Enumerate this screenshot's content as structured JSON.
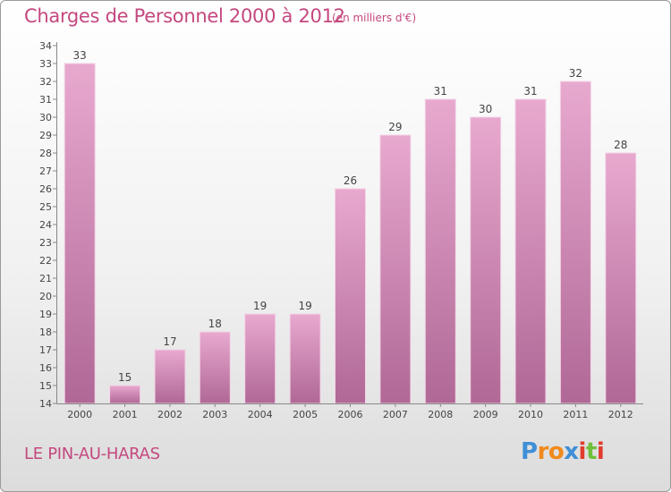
{
  "header": {
    "title": "Charges de Personnel 2000 à 2012",
    "subtitle": "(en milliers d'€)"
  },
  "footer": {
    "location": "LE PIN-AU-HARAS",
    "brand": "Proxiti",
    "brand_letters": [
      {
        "ch": "P",
        "color": "#3f8fd6"
      },
      {
        "ch": "r",
        "color": "#f08a1c"
      },
      {
        "ch": "o",
        "color": "#f08a1c"
      },
      {
        "ch": "x",
        "color": "#3f8fd6"
      },
      {
        "ch": "i",
        "color": "#e23c2e"
      },
      {
        "ch": "t",
        "color": "#6fbf3b"
      },
      {
        "ch": "i",
        "color": "#e23c2e"
      }
    ]
  },
  "colors": {
    "accent": "#c4487f",
    "bar_light": "#e8a9cf",
    "bar_dark": "#b06896"
  },
  "chart_data": {
    "type": "bar",
    "title": "Charges de Personnel 2000 à 2012",
    "subtitle": "(en milliers d'€)",
    "categories": [
      "2000",
      "2001",
      "2002",
      "2003",
      "2004",
      "2005",
      "2006",
      "2007",
      "2008",
      "2009",
      "2010",
      "2011",
      "2012"
    ],
    "values": [
      33,
      15,
      17,
      18,
      19,
      19,
      26,
      29,
      31,
      30,
      31,
      32,
      28
    ],
    "ylim": [
      14,
      34
    ],
    "yticks": [
      14,
      15,
      16,
      17,
      18,
      19,
      20,
      21,
      22,
      23,
      24,
      25,
      26,
      27,
      28,
      29,
      30,
      31,
      32,
      33,
      34
    ],
    "grid": false,
    "data_labels": true
  }
}
